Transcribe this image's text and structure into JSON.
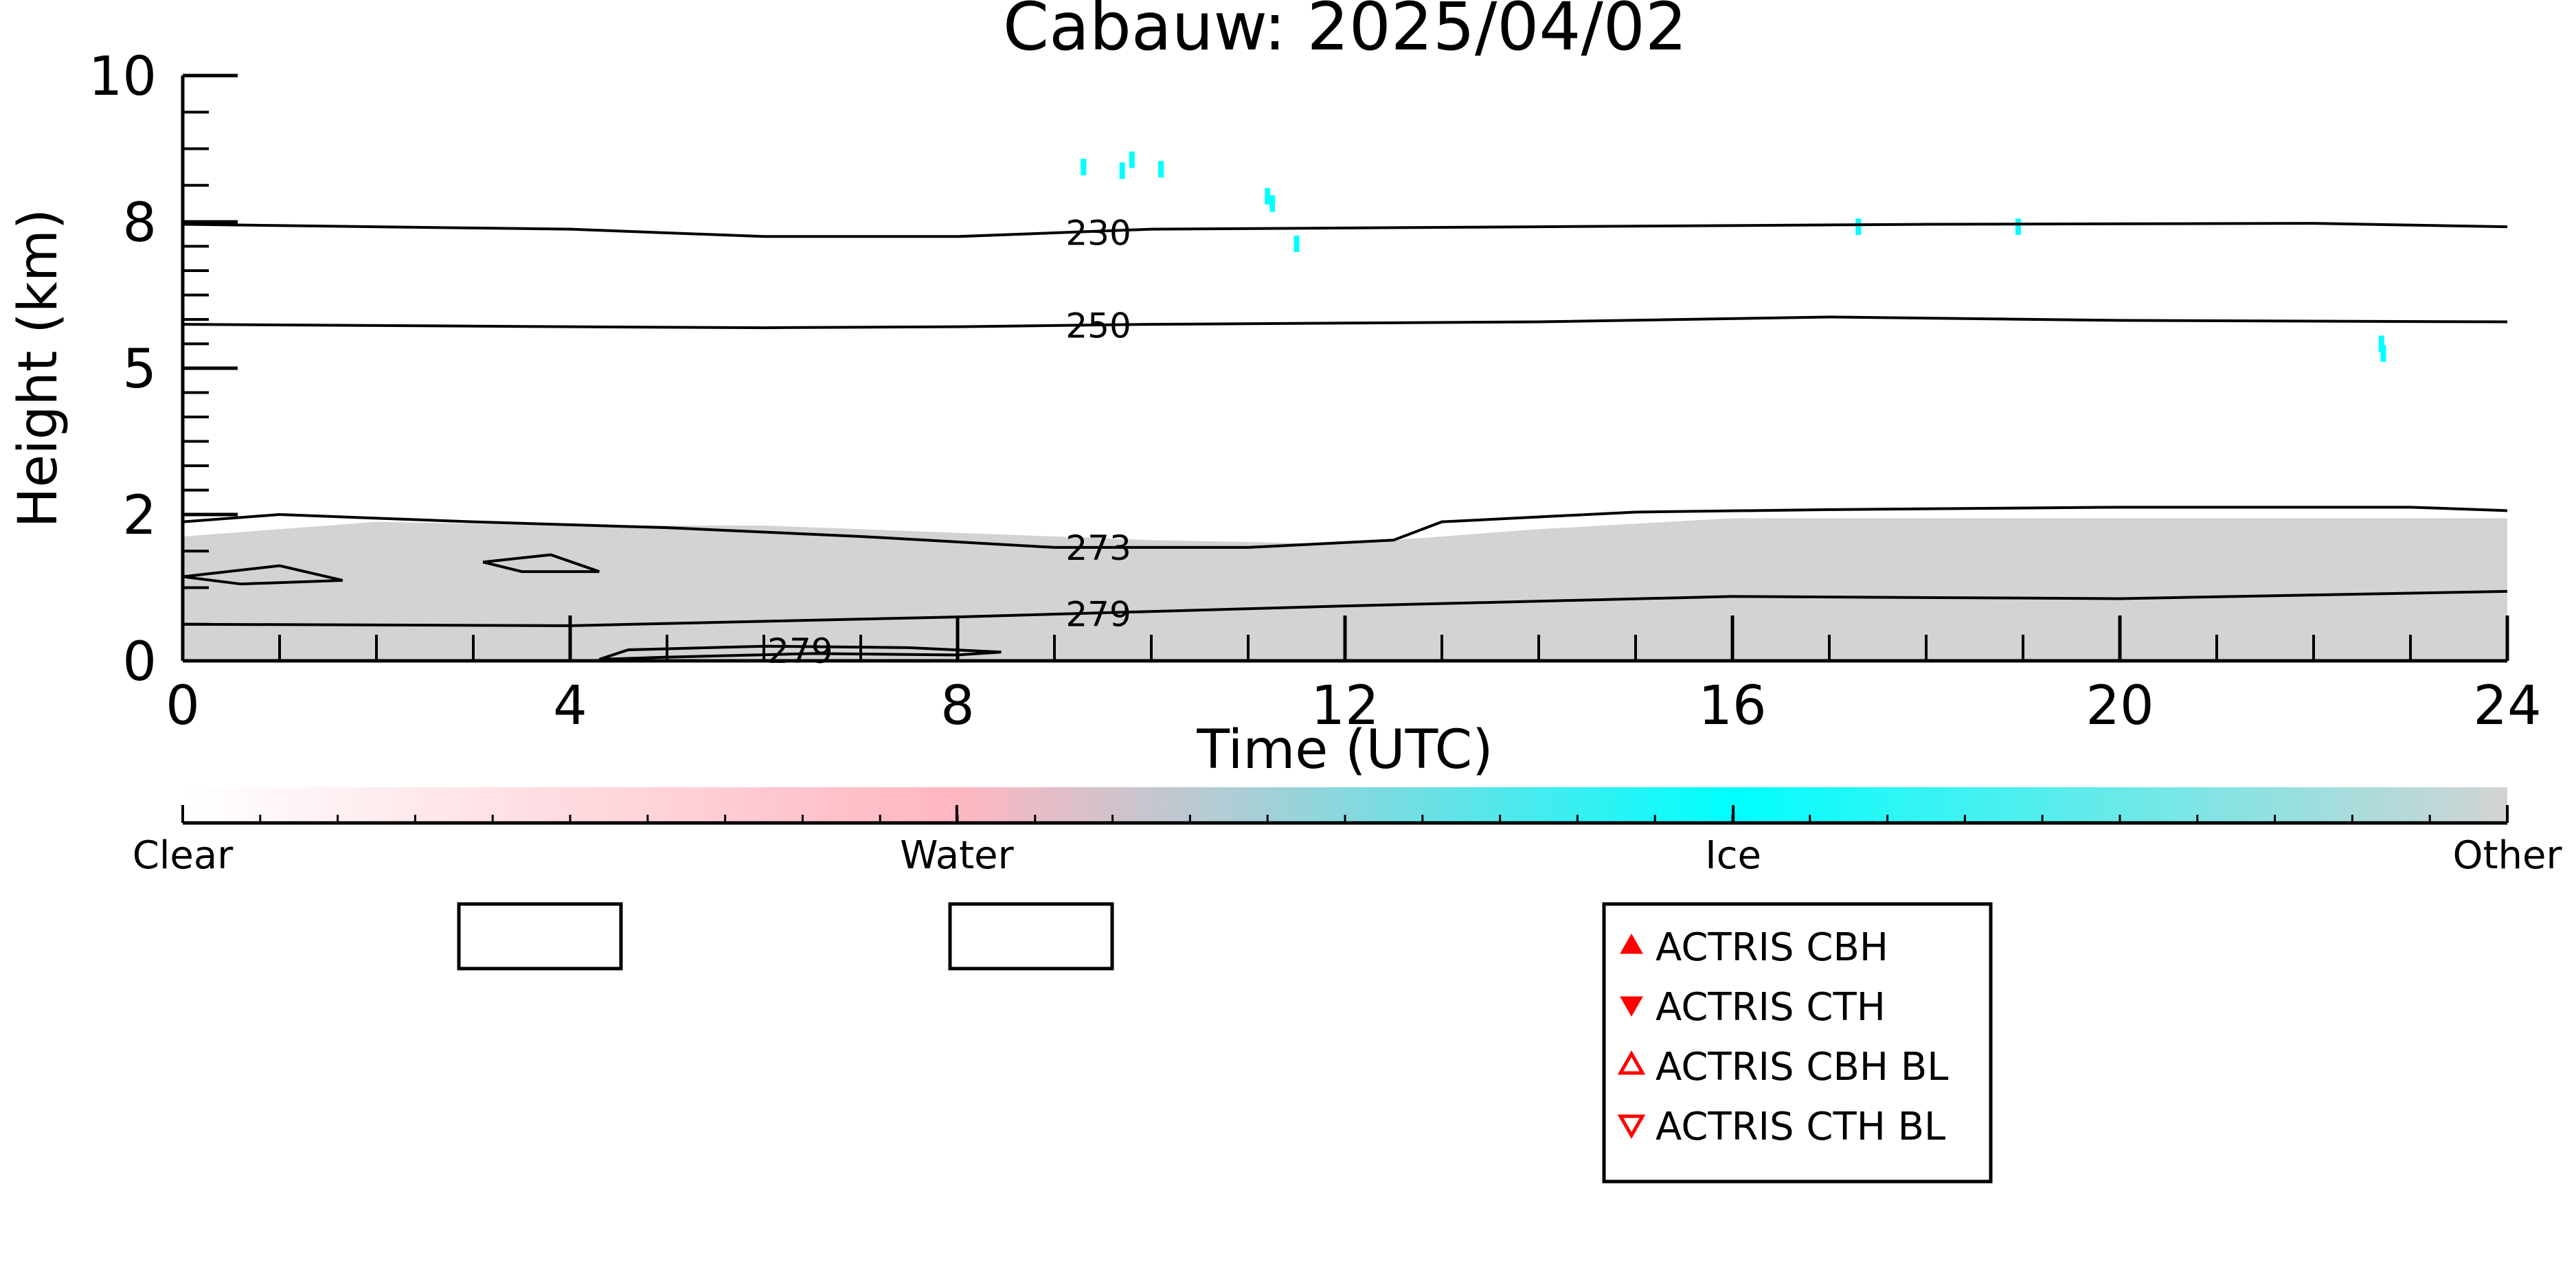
{
  "chart_data": {
    "type": "heatmap",
    "title": "Cabauw: 2025/04/02",
    "xlabel": "Time (UTC)",
    "ylabel": "Height (km)",
    "xlim": [
      0,
      24
    ],
    "ylim": [
      0,
      10
    ],
    "x_ticks": [
      "0",
      "4",
      "8",
      "12",
      "16",
      "20",
      "24"
    ],
    "y_ticks": [
      "0",
      "2",
      "5",
      "8",
      "10"
    ],
    "y_tick_values": [
      0,
      2,
      5,
      8,
      10
    ],
    "y_scale": "nonlinear (tick spacing equal between 0, 2, 5, 8, 10 km)",
    "background_layer": {
      "label": "Other",
      "color": "#d3d3d3",
      "top_km": [
        {
          "t": 0,
          "h": 1.7
        },
        {
          "t": 2,
          "h": 1.9
        },
        {
          "t": 4,
          "h": 1.85
        },
        {
          "t": 6,
          "h": 1.85
        },
        {
          "t": 8,
          "h": 1.75
        },
        {
          "t": 10,
          "h": 1.65
        },
        {
          "t": 12,
          "h": 1.6
        },
        {
          "t": 13,
          "h": 1.7
        },
        {
          "t": 14,
          "h": 1.8
        },
        {
          "t": 16,
          "h": 1.95
        },
        {
          "t": 18,
          "h": 1.95
        },
        {
          "t": 20,
          "h": 1.95
        },
        {
          "t": 22,
          "h": 1.95
        },
        {
          "t": 24,
          "h": 1.95
        }
      ]
    },
    "ice_points": [
      {
        "t": 9.3,
        "h": 8.75
      },
      {
        "t": 9.7,
        "h": 8.7
      },
      {
        "t": 9.8,
        "h": 8.85
      },
      {
        "t": 10.1,
        "h": 8.72
      },
      {
        "t": 11.2,
        "h": 8.35
      },
      {
        "t": 11.25,
        "h": 8.25
      },
      {
        "t": 11.5,
        "h": 7.55
      },
      {
        "t": 17.3,
        "h": 7.9
      },
      {
        "t": 18.95,
        "h": 7.9
      },
      {
        "t": 22.7,
        "h": 5.5
      },
      {
        "t": 22.72,
        "h": 5.3
      }
    ],
    "contours": [
      {
        "label": "230",
        "points": [
          [
            0,
            7.95
          ],
          [
            4,
            7.85
          ],
          [
            6,
            7.7
          ],
          [
            8,
            7.7
          ],
          [
            10,
            7.85
          ],
          [
            14,
            7.9
          ],
          [
            18,
            7.95
          ],
          [
            22,
            7.97
          ],
          [
            24,
            7.9
          ]
        ]
      },
      {
        "label": "250",
        "points": [
          [
            0,
            5.9
          ],
          [
            4,
            5.85
          ],
          [
            6,
            5.83
          ],
          [
            8,
            5.85
          ],
          [
            10,
            5.9
          ],
          [
            14,
            5.95
          ],
          [
            17,
            6.05
          ],
          [
            20,
            5.98
          ],
          [
            24,
            5.95
          ]
        ]
      },
      {
        "label": "273",
        "points": [
          [
            0,
            1.9
          ],
          [
            1,
            2.0
          ],
          [
            3,
            1.9
          ],
          [
            5,
            1.82
          ],
          [
            7,
            1.7
          ],
          [
            9,
            1.55
          ],
          [
            11,
            1.55
          ],
          [
            12.5,
            1.65
          ],
          [
            13,
            1.9
          ],
          [
            15,
            2.05
          ],
          [
            17,
            2.1
          ],
          [
            20,
            2.15
          ],
          [
            23,
            2.15
          ],
          [
            24,
            2.08
          ]
        ]
      },
      {
        "label": "279",
        "points": [
          [
            0,
            0.5
          ],
          [
            4,
            0.48
          ],
          [
            8,
            0.6
          ],
          [
            12,
            0.75
          ],
          [
            16,
            0.88
          ],
          [
            20,
            0.85
          ],
          [
            24,
            0.95
          ]
        ]
      },
      {
        "label": "279",
        "points": [
          [
            4.3,
            0.02
          ],
          [
            4.6,
            0.15
          ],
          [
            6,
            0.2
          ],
          [
            7.5,
            0.18
          ],
          [
            8.45,
            0.12
          ],
          [
            8,
            0.08
          ],
          [
            6.5,
            0.1
          ],
          [
            5,
            0.05
          ],
          [
            4.3,
            0.02
          ]
        ]
      },
      {
        "label": "",
        "points": [
          [
            0,
            1.15
          ],
          [
            1,
            1.3
          ],
          [
            1.65,
            1.1
          ],
          [
            0.6,
            1.05
          ],
          [
            0,
            1.15
          ]
        ]
      },
      {
        "label": "",
        "points": [
          [
            3.1,
            1.35
          ],
          [
            3.8,
            1.45
          ],
          [
            4.3,
            1.22
          ],
          [
            3.5,
            1.22
          ],
          [
            3.1,
            1.35
          ]
        ]
      }
    ],
    "colorbar": {
      "labels": [
        "Clear",
        "Water",
        "Ice",
        "Other"
      ],
      "label_positions": [
        0,
        0.333,
        0.667,
        1.0
      ],
      "colors": [
        "#ffffff",
        "#ffb6c1",
        "#00ffff",
        "#d3d3d3"
      ]
    },
    "legend": {
      "placement": "bottom-center-right",
      "entries": [
        {
          "label": "ACTRIS CBH",
          "marker": "filled-triangle-up",
          "color": "#ff0000"
        },
        {
          "label": "ACTRIS CTH",
          "marker": "filled-triangle-down",
          "color": "#ff0000"
        },
        {
          "label": "ACTRIS CBH BL",
          "marker": "open-triangle-up",
          "color": "#ff0000"
        },
        {
          "label": "ACTRIS CTH BL",
          "marker": "open-triangle-down",
          "color": "#ff0000"
        }
      ]
    },
    "grid": false
  }
}
